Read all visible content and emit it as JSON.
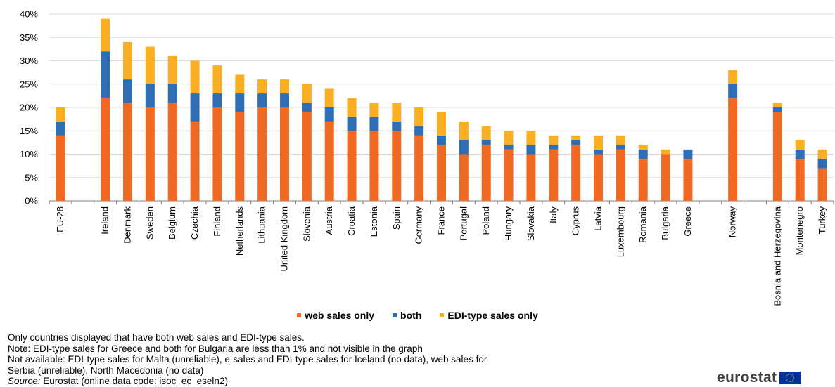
{
  "chart_data": {
    "type": "bar",
    "stacked": true,
    "categories": [
      "EU-28",
      "",
      "Ireland",
      "Denmark",
      "Sweden",
      "Belgium",
      "Czechia",
      "Finland",
      "Netherlands",
      "Lithuania",
      "United Kingdom",
      "Slovenia",
      "Austria",
      "Croatia",
      "Estonia",
      "Spain",
      "Germany",
      "France",
      "Portugal",
      "Poland",
      "Hungary",
      "Slovakia",
      "Italy",
      "Cyprus",
      "Latvia",
      "Luxembourg",
      "Romania",
      "Bulgaria",
      "Greece",
      "",
      "Norway",
      "",
      "Bosnia and Herzegovina",
      "Montenegro",
      "Turkey"
    ],
    "series": [
      {
        "name": "web sales only",
        "color": "#f06a23",
        "values": [
          14,
          null,
          22,
          21,
          20,
          21,
          17,
          20,
          19,
          20,
          20,
          19,
          17,
          15,
          15,
          15,
          14,
          12,
          10,
          12,
          11,
          10,
          11,
          12,
          10,
          11,
          9,
          10,
          9,
          null,
          22,
          null,
          19,
          9,
          7
        ]
      },
      {
        "name": "both",
        "color": "#2f6db5",
        "values": [
          3,
          null,
          10,
          5,
          5,
          4,
          6,
          3,
          4,
          3,
          3,
          2,
          3,
          3,
          3,
          2,
          2,
          2,
          3,
          1,
          1,
          2,
          1,
          1,
          1,
          1,
          2,
          0,
          2,
          null,
          3,
          null,
          1,
          2,
          2
        ]
      },
      {
        "name": "EDI-type sales only",
        "color": "#f9ae24",
        "values": [
          3,
          null,
          7,
          8,
          8,
          6,
          7,
          6,
          4,
          3,
          3,
          4,
          4,
          4,
          3,
          4,
          4,
          5,
          4,
          3,
          3,
          3,
          2,
          1,
          3,
          2,
          1,
          1,
          0,
          null,
          3,
          null,
          1,
          2,
          2
        ]
      }
    ],
    "y_ticks": [
      "0%",
      "5%",
      "10%",
      "15%",
      "20%",
      "25%",
      "30%",
      "35%",
      "40%"
    ],
    "ylim": [
      0,
      40
    ],
    "grid": true,
    "legend_position": "bottom"
  },
  "legend": [
    {
      "label": "web sales only",
      "color": "#f06a23"
    },
    {
      "label": "both",
      "color": "#2f6db5"
    },
    {
      "label": "EDI-type sales only",
      "color": "#f9ae24"
    }
  ],
  "notes": {
    "line1": "Only countries displayed that have both web sales and EDI-type sales.",
    "line2": "Note: EDI-type sales for Greece and both for Bulgaria are less than 1% and not visible in the graph",
    "line3": "Not available: EDI-type sales for Malta (unreliable), e-sales and  EDI-type sales for Iceland (no data), web sales for",
    "line4": "Serbia (unreliable), North Macedonia (no data)",
    "source_label": "Source:",
    "source_text": " Eurostat (online data code: isoc_ec_eseln2)"
  },
  "logo": {
    "text": "eurostat"
  }
}
